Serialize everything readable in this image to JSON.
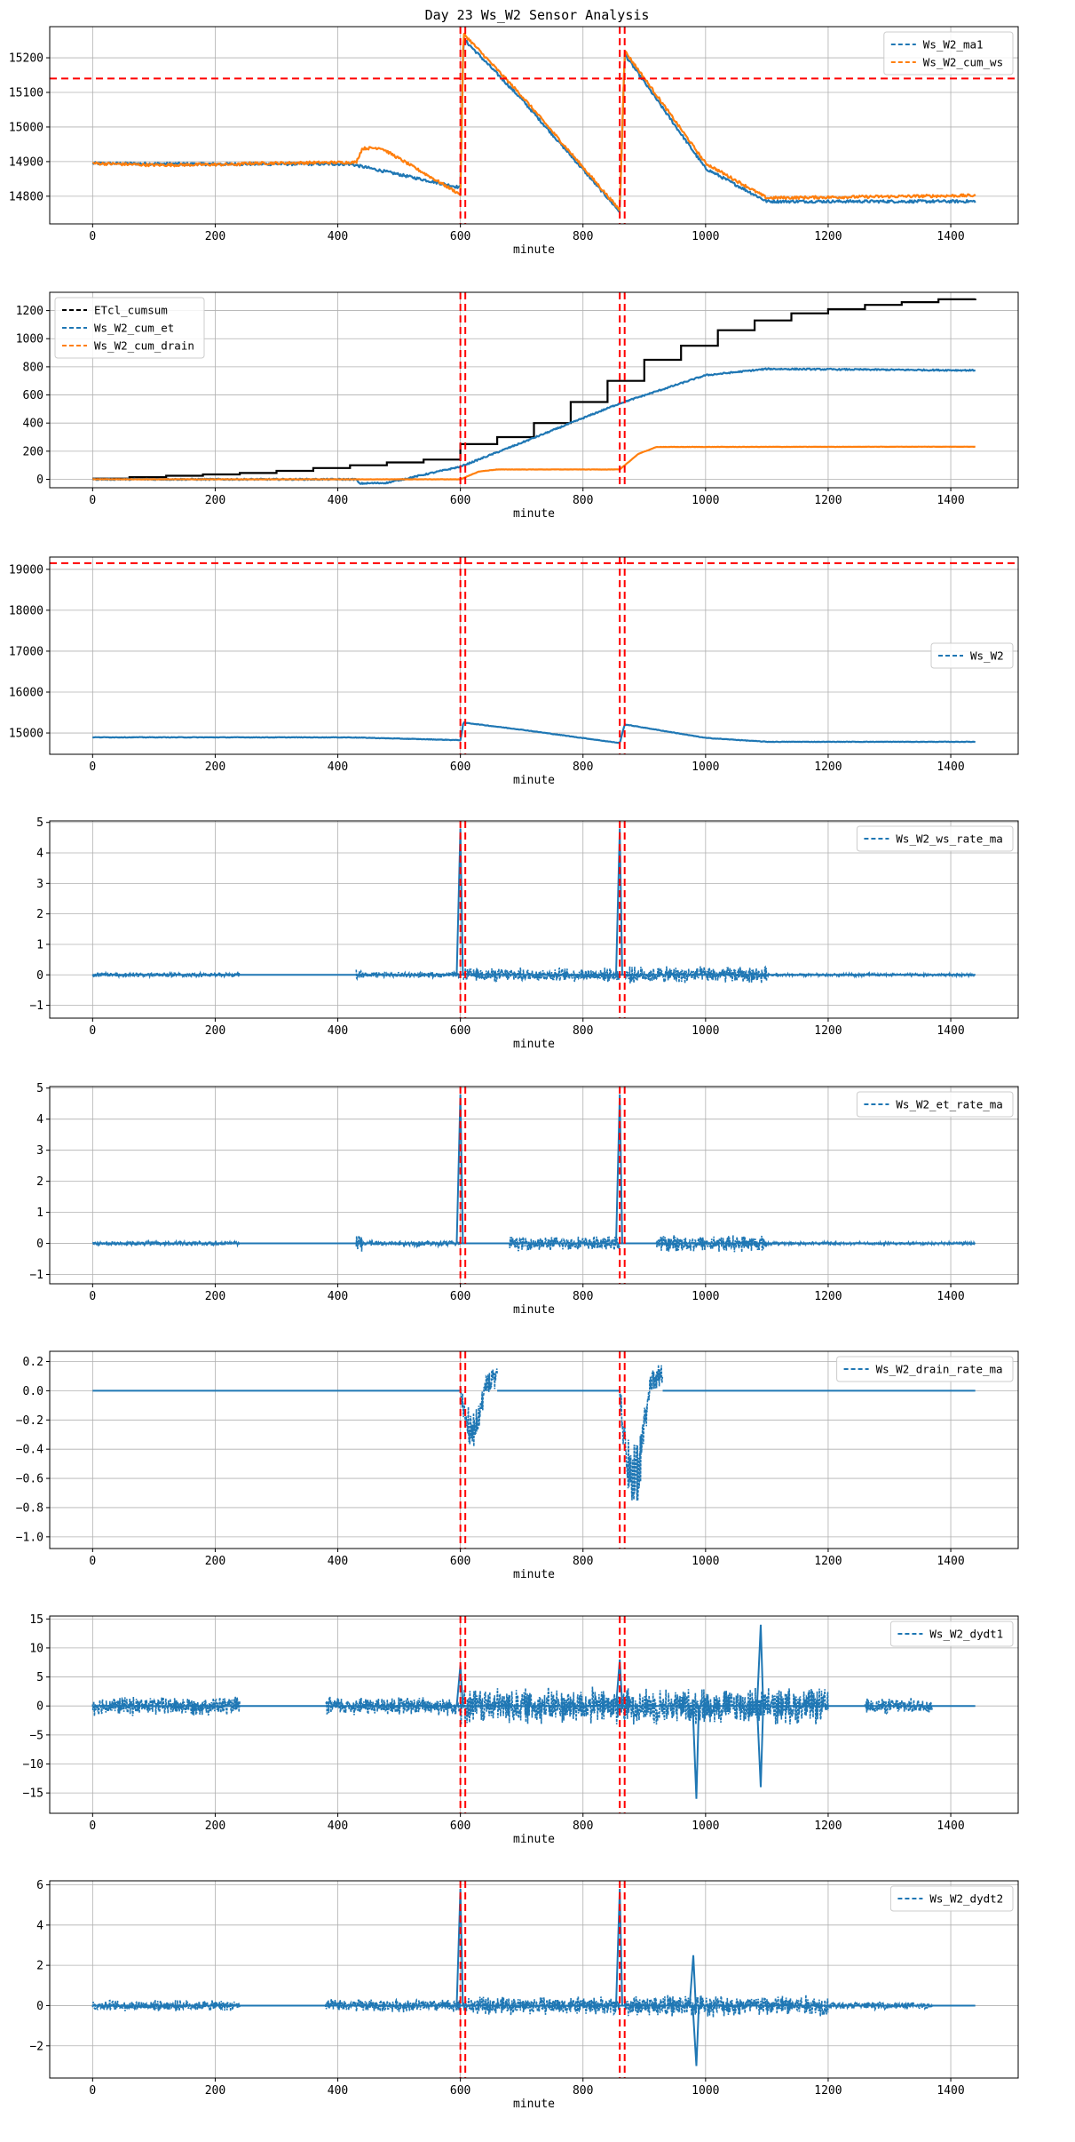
{
  "title": "Day 23 Ws_W2 Sensor Analysis",
  "colors": {
    "blue": "#1f77b4",
    "orange": "#ff7f0e",
    "black": "#000000",
    "red": "#ff0000",
    "grid": "#b0b0b0"
  },
  "event_lines": [
    600,
    608,
    860,
    868
  ],
  "chart_data": [
    {
      "type": "line",
      "xlabel": "minute",
      "xlim": [
        -70,
        1510
      ],
      "ylim": [
        14720,
        15290
      ],
      "xticks": [
        0,
        200,
        400,
        600,
        800,
        1000,
        1200,
        1400
      ],
      "yticks": [
        14800,
        14900,
        15000,
        15100,
        15200
      ],
      "hline": 15140,
      "legend_position": "upper right",
      "series": [
        {
          "name": "Ws_W2_ma1",
          "color": "blue",
          "noise": 4,
          "points": [
            [
              0,
              14895
            ],
            [
              180,
              14893
            ],
            [
              420,
              14893
            ],
            [
              600,
              14825
            ],
            [
              605,
              15255
            ],
            [
              700,
              15080
            ],
            [
              860,
              14755
            ],
            [
              868,
              15210
            ],
            [
              1000,
              14880
            ],
            [
              1100,
              14785
            ],
            [
              1440,
              14785
            ]
          ]
        },
        {
          "name": "Ws_W2_cum_ws",
          "color": "orange",
          "noise": 4,
          "points": [
            [
              0,
              14895
            ],
            [
              100,
              14890
            ],
            [
              240,
              14892
            ],
            [
              250,
              14895
            ],
            [
              430,
              14898
            ],
            [
              440,
              14938
            ],
            [
              470,
              14940
            ],
            [
              600,
              14805
            ],
            [
              605,
              15270
            ],
            [
              700,
              15090
            ],
            [
              860,
              14760
            ],
            [
              868,
              15220
            ],
            [
              1000,
              14895
            ],
            [
              1100,
              14795
            ],
            [
              1440,
              14802
            ]
          ]
        }
      ]
    },
    {
      "type": "line",
      "xlabel": "minute",
      "xlim": [
        -70,
        1510
      ],
      "ylim": [
        -60,
        1330
      ],
      "xticks": [
        0,
        200,
        400,
        600,
        800,
        1000,
        1200,
        1400
      ],
      "yticks": [
        0,
        200,
        400,
        600,
        800,
        1000,
        1200
      ],
      "legend_position": "upper left",
      "series": [
        {
          "name": "ETcl_cumsum",
          "color": "black",
          "steps": [
            [
              0,
              5
            ],
            [
              60,
              15
            ],
            [
              120,
              25
            ],
            [
              180,
              35
            ],
            [
              240,
              45
            ],
            [
              300,
              60
            ],
            [
              360,
              80
            ],
            [
              420,
              100
            ],
            [
              480,
              120
            ],
            [
              540,
              140
            ],
            [
              600,
              250
            ],
            [
              660,
              300
            ],
            [
              720,
              400
            ],
            [
              780,
              550
            ],
            [
              840,
              700
            ],
            [
              900,
              850
            ],
            [
              960,
              950
            ],
            [
              1020,
              1060
            ],
            [
              1080,
              1130
            ],
            [
              1140,
              1180
            ],
            [
              1200,
              1210
            ],
            [
              1260,
              1240
            ],
            [
              1320,
              1260
            ],
            [
              1380,
              1280
            ],
            [
              1440,
              1285
            ]
          ]
        },
        {
          "name": "Ws_W2_cum_et",
          "color": "blue",
          "noise": 5,
          "points": [
            [
              0,
              0
            ],
            [
              430,
              0
            ],
            [
              435,
              -30
            ],
            [
              480,
              -25
            ],
            [
              600,
              90
            ],
            [
              700,
              260
            ],
            [
              860,
              540
            ],
            [
              1000,
              740
            ],
            [
              1100,
              785
            ],
            [
              1440,
              775
            ]
          ]
        },
        {
          "name": "Ws_W2_cum_drain",
          "color": "orange",
          "noise": 1,
          "points": [
            [
              0,
              0
            ],
            [
              600,
              0
            ],
            [
              630,
              55
            ],
            [
              660,
              70
            ],
            [
              860,
              70
            ],
            [
              890,
              180
            ],
            [
              920,
              230
            ],
            [
              1440,
              232
            ]
          ]
        }
      ]
    },
    {
      "type": "line",
      "xlabel": "minute",
      "xlim": [
        -70,
        1510
      ],
      "ylim": [
        14480,
        19300
      ],
      "xticks": [
        0,
        200,
        400,
        600,
        800,
        1000,
        1200,
        1400
      ],
      "yticks": [
        15000,
        16000,
        17000,
        18000,
        19000
      ],
      "hline": 19150,
      "legend_position": "center right",
      "series": [
        {
          "name": "Ws_W2",
          "color": "blue",
          "noise": 6,
          "points": [
            [
              0,
              14895
            ],
            [
              420,
              14893
            ],
            [
              600,
              14825
            ],
            [
              605,
              15255
            ],
            [
              700,
              15080
            ],
            [
              860,
              14755
            ],
            [
              868,
              15210
            ],
            [
              1000,
              14880
            ],
            [
              1100,
              14785
            ],
            [
              1440,
              14785
            ]
          ]
        }
      ]
    },
    {
      "type": "line",
      "xlabel": "minute",
      "xlim": [
        -70,
        1510
      ],
      "ylim": [
        -1.42,
        5.05
      ],
      "xticks": [
        0,
        200,
        400,
        600,
        800,
        1000,
        1200,
        1400
      ],
      "yticks": [
        -1,
        0,
        1,
        2,
        3,
        4,
        5
      ],
      "legend_position": "upper right",
      "series": [
        {
          "name": "Ws_W2_ws_rate_ma",
          "color": "blue",
          "spikes": [
            [
              600,
              4.8
            ],
            [
              860,
              4.8
            ]
          ],
          "noise_ranges": [
            [
              0,
              240,
              0.08
            ],
            [
              430,
              440,
              0.35
            ],
            [
              440,
              600,
              0.1
            ],
            [
              605,
              860,
              0.25
            ],
            [
              868,
              1100,
              0.3
            ],
            [
              1100,
              1440,
              0.05
            ]
          ]
        }
      ]
    },
    {
      "type": "line",
      "xlabel": "minute",
      "xlim": [
        -70,
        1510
      ],
      "ylim": [
        -1.3,
        5.05
      ],
      "xticks": [
        0,
        200,
        400,
        600,
        800,
        1000,
        1200,
        1400
      ],
      "yticks": [
        -1,
        0,
        1,
        2,
        3,
        4,
        5
      ],
      "legend_position": "upper right",
      "series": [
        {
          "name": "Ws_W2_et_rate_ma",
          "color": "blue",
          "spikes": [
            [
              600,
              4.8
            ],
            [
              860,
              4.8
            ]
          ],
          "noise_ranges": [
            [
              0,
              240,
              0.08
            ],
            [
              430,
              440,
              0.35
            ],
            [
              440,
              600,
              0.1
            ],
            [
              680,
              860,
              0.25
            ],
            [
              920,
              1100,
              0.3
            ],
            [
              1100,
              1440,
              0.05
            ]
          ]
        }
      ]
    },
    {
      "type": "line",
      "xlabel": "minute",
      "xlim": [
        -70,
        1510
      ],
      "ylim": [
        -1.08,
        0.27
      ],
      "xticks": [
        0,
        200,
        400,
        600,
        800,
        1000,
        1200,
        1400
      ],
      "yticks": [
        -1.0,
        -0.8,
        -0.6,
        -0.4,
        -0.2,
        0.0,
        0.2
      ],
      "legend_position": "upper right",
      "series": [
        {
          "name": "Ws_W2_drain_rate_ma",
          "color": "blue",
          "drain_dips": [
            [
              600,
              660,
              -0.45
            ],
            [
              860,
              930,
              -1.0
            ]
          ]
        }
      ]
    },
    {
      "type": "line",
      "xlabel": "minute",
      "xlim": [
        -70,
        1510
      ],
      "ylim": [
        -18.5,
        15.5
      ],
      "xticks": [
        0,
        200,
        400,
        600,
        800,
        1000,
        1200,
        1400
      ],
      "yticks": [
        -15,
        -10,
        -5,
        0,
        5,
        10,
        15
      ],
      "legend_position": "upper right",
      "series": [
        {
          "name": "Ws_W2_dydt1",
          "color": "blue",
          "spikes": [
            [
              600,
              7
            ],
            [
              860,
              8
            ],
            [
              1090,
              14
            ],
            [
              985,
              -16
            ],
            [
              1090,
              -14
            ]
          ],
          "noise_ranges": [
            [
              0,
              240,
              1.8
            ],
            [
              380,
              600,
              1.8
            ],
            [
              600,
              1200,
              3.5
            ],
            [
              1260,
              1370,
              1.5
            ]
          ]
        }
      ]
    },
    {
      "type": "line",
      "xlabel": "minute",
      "xlim": [
        -70,
        1510
      ],
      "ylim": [
        -3.6,
        6.2
      ],
      "xticks": [
        0,
        200,
        400,
        600,
        800,
        1000,
        1200,
        1400
      ],
      "yticks": [
        -2,
        0,
        2,
        4,
        6
      ],
      "legend_position": "upper right",
      "series": [
        {
          "name": "Ws_W2_dydt2",
          "color": "blue",
          "spikes": [
            [
              600,
              5.8
            ],
            [
              860,
              5.8
            ],
            [
              980,
              2.5
            ],
            [
              985,
              -3
            ]
          ],
          "noise_ranges": [
            [
              0,
              240,
              0.3
            ],
            [
              380,
              600,
              0.35
            ],
            [
              605,
              860,
              0.5
            ],
            [
              868,
              1200,
              0.6
            ],
            [
              1200,
              1370,
              0.2
            ]
          ]
        }
      ]
    }
  ]
}
